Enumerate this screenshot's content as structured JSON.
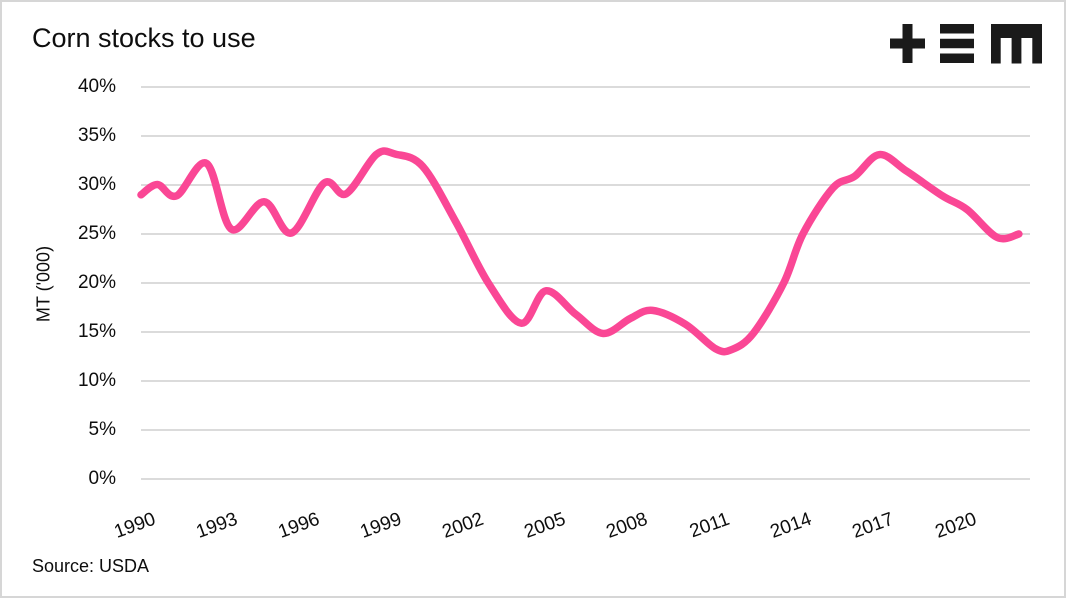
{
  "header": {
    "title": "Corn stocks to use",
    "logo": "tem-logo"
  },
  "chart": {
    "y_axis_label": "MT ('000)",
    "y_ticks": [
      "40%",
      "35%",
      "30%",
      "25%",
      "20%",
      "15%",
      "10%",
      "5%",
      "0%"
    ],
    "y_tick_values": [
      40,
      35,
      30,
      25,
      20,
      15,
      10,
      5,
      0
    ],
    "x_ticks": [
      "1990",
      "1993",
      "1996",
      "1999",
      "2002",
      "2005",
      "2008",
      "2011",
      "2014",
      "2017",
      "2020"
    ],
    "x_tick_values": [
      1990,
      1993,
      1996,
      1999,
      2002,
      2005,
      2008,
      2011,
      2014,
      2017,
      2020
    ]
  },
  "footer": {
    "source": "Source: USDA"
  },
  "colors": {
    "line": "#FA4795",
    "gridline": "#DBDBDB",
    "text": "#0E0E0E",
    "logo": "#1A1A1A",
    "border": "#D6D6D6",
    "background": "#FFFFFF"
  },
  "chart_data": {
    "type": "line",
    "title": "Corn stocks to use",
    "xlabel": "",
    "ylabel": "MT ('000)",
    "source": "Source: USDA",
    "ylim": [
      0,
      40
    ],
    "xlim": [
      1990,
      2022.5
    ],
    "grid": "horizontal",
    "legend": "none",
    "line_color": "#FA4795",
    "x": [
      1990,
      1991,
      1992,
      1993,
      1994,
      1995,
      1996,
      1997,
      1998,
      1999,
      2000,
      2001,
      2002,
      2003,
      2004,
      2005,
      2006,
      2007,
      2008,
      2009,
      2010,
      2011,
      2012,
      2013,
      2014,
      2015,
      2016,
      2017,
      2018,
      2019,
      2020,
      2021,
      2022
    ],
    "values": [
      29,
      29.5,
      31.5,
      27.5,
      28,
      25.5,
      30,
      29.5,
      32.5,
      33,
      32,
      28,
      23,
      18,
      16,
      19,
      16.5,
      15,
      16.5,
      17,
      15.5,
      13.5,
      14.5,
      18,
      24,
      29.5,
      31,
      33,
      31.5,
      29.5,
      27.5,
      25,
      25
    ],
    "curve_points": [
      [
        1990.0,
        29.0
      ],
      [
        1990.6,
        30.05
      ],
      [
        1991.3,
        28.9
      ],
      [
        1992.4,
        32.2
      ],
      [
        1993.3,
        25.5
      ],
      [
        1994.5,
        28.3
      ],
      [
        1995.5,
        25.1
      ],
      [
        1996.7,
        30.2
      ],
      [
        1997.5,
        29.1
      ],
      [
        1998.6,
        33.1
      ],
      [
        1999.3,
        33.15
      ],
      [
        2000.3,
        31.9
      ],
      [
        2001.5,
        26.3
      ],
      [
        2002.7,
        20.0
      ],
      [
        2003.9,
        15.9
      ],
      [
        2004.8,
        19.2
      ],
      [
        2005.9,
        16.8
      ],
      [
        2006.9,
        14.85
      ],
      [
        2007.9,
        16.4
      ],
      [
        2008.7,
        17.2
      ],
      [
        2009.9,
        15.8
      ],
      [
        2011.0,
        13.3
      ],
      [
        2011.6,
        13.2
      ],
      [
        2012.4,
        14.9
      ],
      [
        2013.5,
        20.0
      ],
      [
        2014.2,
        25.0
      ],
      [
        2015.3,
        29.7
      ],
      [
        2016.1,
        30.9
      ],
      [
        2017.0,
        33.1
      ],
      [
        2018.0,
        31.4
      ],
      [
        2019.3,
        28.9
      ],
      [
        2020.2,
        27.5
      ],
      [
        2021.3,
        24.65
      ],
      [
        2022.1,
        25.0
      ]
    ]
  }
}
